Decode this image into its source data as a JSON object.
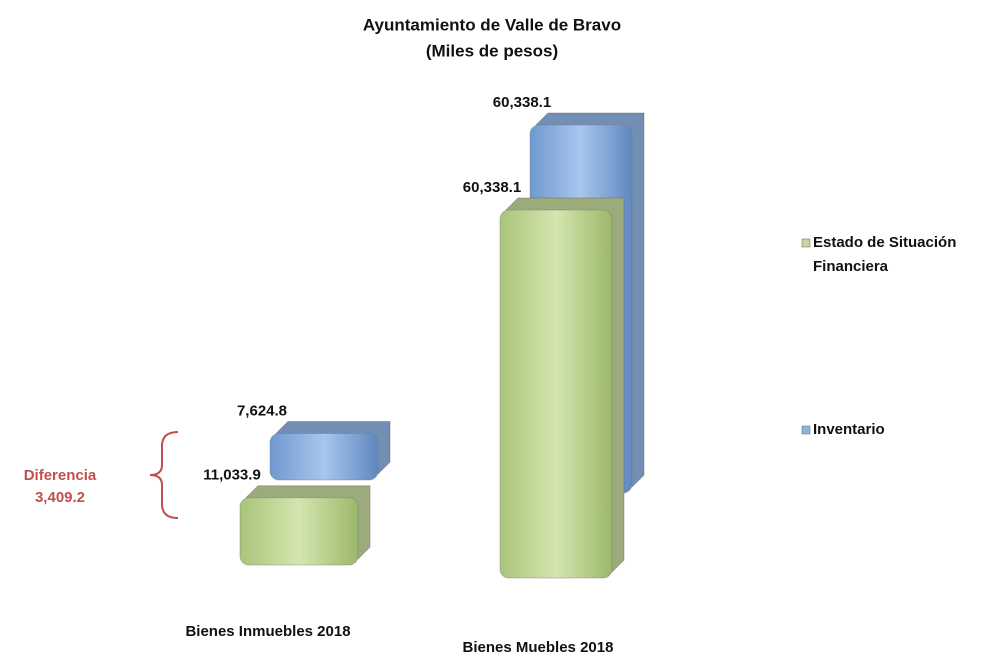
{
  "chart_data": {
    "type": "bar3d",
    "title": "Ayuntamiento de Valle de Bravo",
    "subtitle": "(Miles de pesos)",
    "categories": [
      "Bienes Inmuebles 2018",
      "Bienes Muebles 2018"
    ],
    "series": [
      {
        "name": "Estado de Situación Financiera",
        "color": "#c3d69b",
        "values": [
          11033.9,
          60338.1
        ],
        "value_labels": [
          "11,033.9",
          "60,338.1"
        ]
      },
      {
        "name": "Inventario",
        "color": "#8db3e2",
        "values": [
          7624.8,
          60338.1
        ],
        "value_labels": [
          "7,624.8",
          "60,338.1"
        ]
      }
    ],
    "annotation": {
      "text": "Diferencia",
      "value": 3409.2,
      "label": "3,409.2"
    },
    "legend": "right"
  }
}
